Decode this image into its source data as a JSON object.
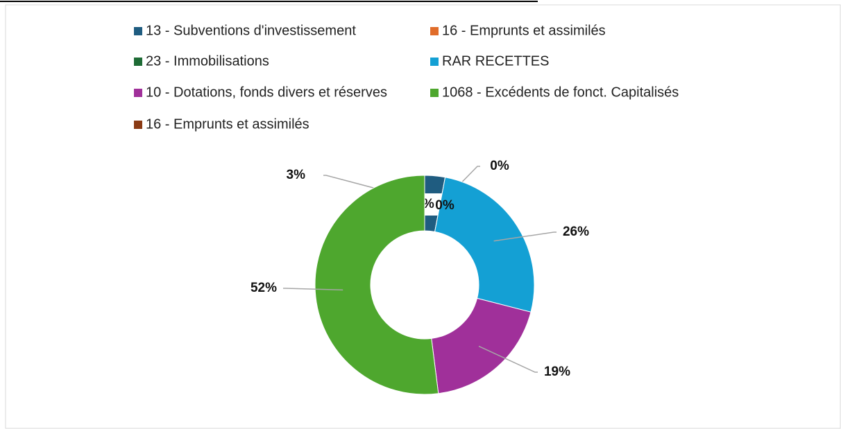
{
  "chart_data": {
    "type": "donut",
    "categories": [
      "13 - Subventions d'investissement",
      "16 - Emprunts et assimilés",
      "23 - Immobilisations",
      "RAR RECETTES",
      "10 - Dotations, fonds divers et réserves",
      "1068 - Excédents de fonct. Capitalisés",
      "16 - Emprunts et assimilés"
    ],
    "values": [
      3,
      0,
      0,
      26,
      19,
      52,
      0
    ],
    "value_labels": [
      "3%",
      "0%",
      "0%",
      "26%",
      "19%",
      "52%",
      "0%"
    ],
    "colors": [
      "#1f5c80",
      "#e06c2a",
      "#1e6b35",
      "#14a0d4",
      "#a0309a",
      "#4ea72e",
      "#8a3a14"
    ],
    "legend": "top"
  }
}
